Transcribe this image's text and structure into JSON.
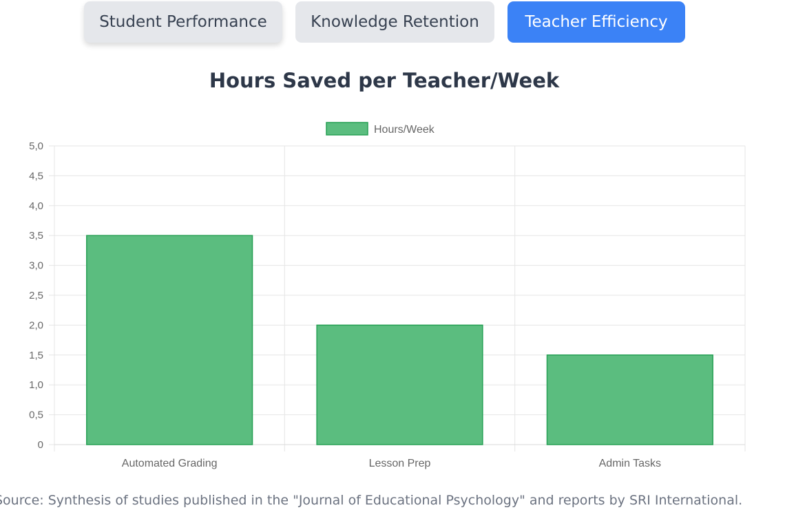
{
  "tabs": [
    {
      "label": "Student Performance",
      "active": false
    },
    {
      "label": "Knowledge Retention",
      "active": false
    },
    {
      "label": "Teacher Efficiency",
      "active": true
    }
  ],
  "colors": {
    "accent": "#3b82f6",
    "bar_fill": "#5bbd7f",
    "bar_border": "#27a055"
  },
  "chart_data": {
    "type": "bar",
    "title": "Hours Saved per Teacher/Week",
    "categories": [
      "Automated Grading",
      "Lesson Prep",
      "Admin Tasks"
    ],
    "series": [
      {
        "name": "Hours/Week",
        "values": [
          3.5,
          2.0,
          1.5
        ]
      }
    ],
    "ylim": [
      0,
      5
    ],
    "yticks": [
      "0",
      "0,5",
      "1,0",
      "1,5",
      "2,0",
      "2,5",
      "3,0",
      "3,5",
      "4,0",
      "4,5",
      "5,0"
    ],
    "xlabel": "",
    "ylabel": "",
    "grid": true,
    "legend": "top"
  },
  "source": "Source: Synthesis of studies published in the \"Journal of Educational Psychology\" and reports by SRI International."
}
